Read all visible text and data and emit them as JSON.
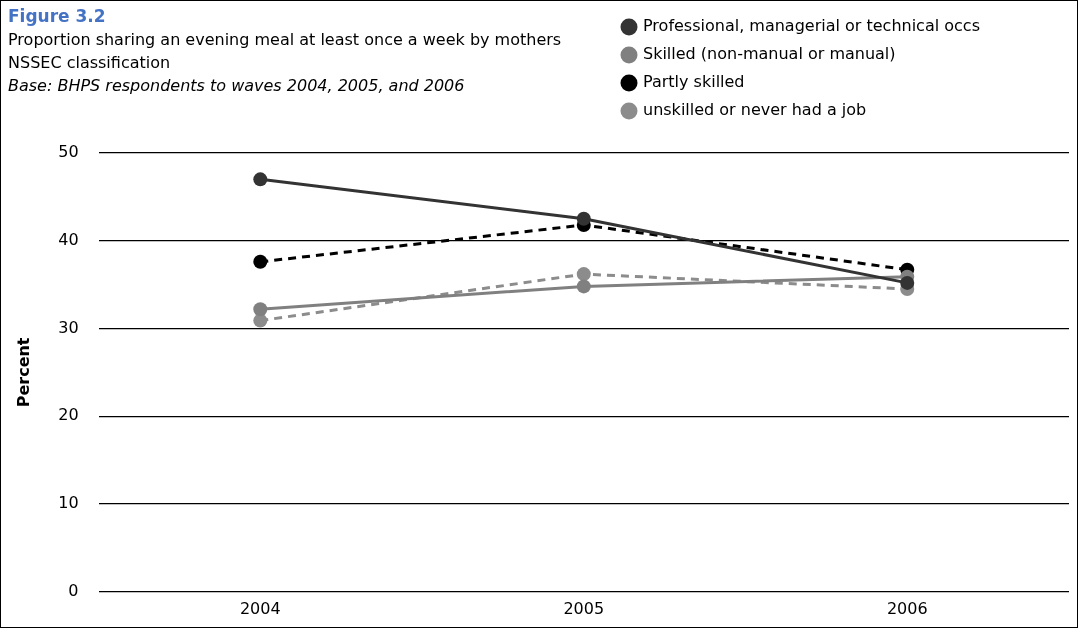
{
  "chart_data": {
    "type": "line",
    "title": "Figure 3.2",
    "subtitle": "Proportion sharing an evening meal at least once a week by mothers NSSEC classification",
    "annotations": [
      "Base: BHPS respondents to waves 2004, 2005, and 2006"
    ],
    "ylabel": "Percent",
    "categories": [
      "2004",
      "2005",
      "2006"
    ],
    "ylim": [
      0,
      50
    ],
    "yticks": [
      0,
      10,
      20,
      30,
      40,
      50
    ],
    "grid": "y",
    "legend": "top right",
    "marker": "circle",
    "series": [
      {
        "name": "Professional, managerial or technical occs",
        "color": "#333333",
        "line_style": "solid",
        "values": [
          47.0,
          42.5,
          35.2
        ]
      },
      {
        "name": "Skilled (non-manual or manual)",
        "color": "#808080",
        "line_style": "solid",
        "values": [
          32.2,
          34.8,
          35.9
        ]
      },
      {
        "name": "Partly skilled",
        "color": "#000000",
        "line_style": "dashed",
        "values": [
          37.6,
          41.8,
          36.7
        ]
      },
      {
        "name": "unskilled or never had a job",
        "color": "#8c8c8c",
        "line_style": "dashed",
        "values": [
          30.9,
          36.2,
          34.5
        ]
      }
    ]
  }
}
